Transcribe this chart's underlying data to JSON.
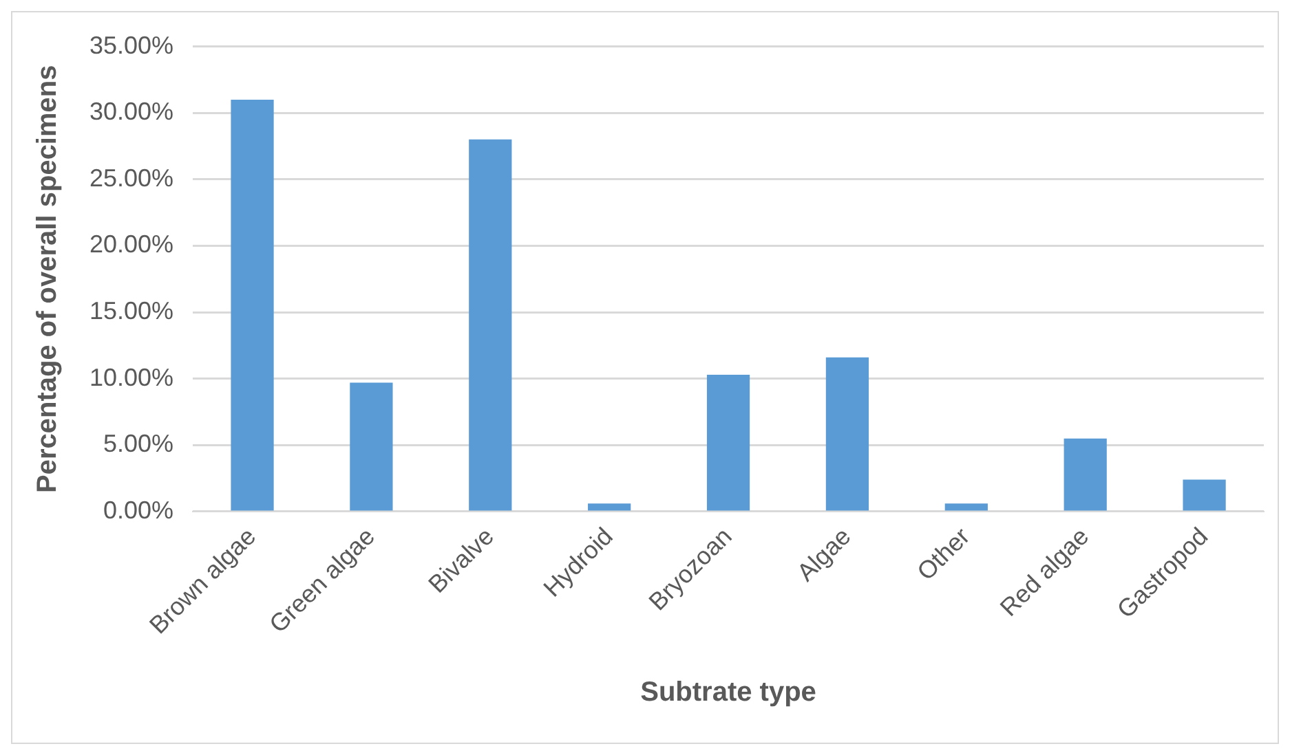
{
  "chart_data": {
    "type": "bar",
    "xlabel": "Subtrate type",
    "ylabel": "Percentage of overall specimens",
    "categories": [
      "Brown algae",
      "Green algae",
      "Bivalve",
      "Hydroid",
      "Bryozoan",
      "Algae",
      "Other",
      "Red algae",
      "Gastropod"
    ],
    "values": [
      31.0,
      9.7,
      28.0,
      0.6,
      10.3,
      11.6,
      0.6,
      5.5,
      2.4
    ],
    "color": "#5b9bd5",
    "ylim": [
      0,
      35
    ],
    "yticks": [
      {
        "value": 0,
        "label": "0.00%"
      },
      {
        "value": 5,
        "label": "5.00%"
      },
      {
        "value": 10,
        "label": "10.00%"
      },
      {
        "value": 15,
        "label": "15.00%"
      },
      {
        "value": 20,
        "label": "20.00%"
      },
      {
        "value": 25,
        "label": "25.00%"
      },
      {
        "value": 30,
        "label": "30.00%"
      },
      {
        "value": 35,
        "label": "35.00%"
      }
    ],
    "grid": "y",
    "legend": false
  }
}
